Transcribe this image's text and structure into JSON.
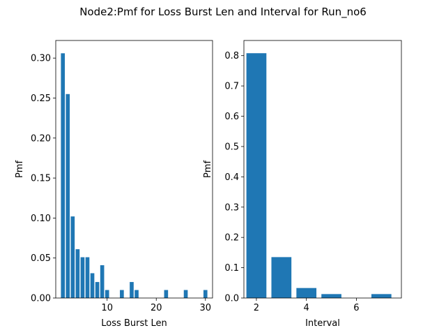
{
  "suptitle": "Node2:Pmf for Loss Burst Len and Interval for Run_no6",
  "chart_data": [
    {
      "type": "bar",
      "xlabel": "Loss Burst Len",
      "ylabel": "Pmf",
      "color": "#1f77b4",
      "xlim": [
        -0.45,
        31.45
      ],
      "ylim": [
        0,
        0.322
      ],
      "xticks": [
        10,
        20,
        30
      ],
      "yticks": [
        0.0,
        0.05,
        0.1,
        0.15,
        0.2,
        0.25,
        0.3
      ],
      "ytick_labels": [
        "0.00",
        "0.05",
        "0.10",
        "0.15",
        "0.20",
        "0.25",
        "0.30"
      ],
      "bar_width": 0.8,
      "x": [
        1,
        2,
        3,
        4,
        5,
        6,
        7,
        8,
        9,
        10,
        13,
        15,
        16,
        22,
        26,
        30
      ],
      "values": [
        0.306,
        0.255,
        0.102,
        0.061,
        0.051,
        0.051,
        0.031,
        0.02,
        0.041,
        0.01,
        0.01,
        0.02,
        0.01,
        0.01,
        0.01,
        0.01
      ]
    },
    {
      "type": "bar",
      "xlabel": "Interval",
      "ylabel": "Pmf",
      "color": "#1f77b4",
      "xlim": [
        1.5,
        7.8
      ],
      "ylim": [
        0,
        0.85
      ],
      "xticks": [
        2,
        4,
        6
      ],
      "yticks": [
        0.0,
        0.1,
        0.2,
        0.3,
        0.4,
        0.5,
        0.6,
        0.7,
        0.8
      ],
      "ytick_labels": [
        "0.0",
        "0.1",
        "0.2",
        "0.3",
        "0.4",
        "0.5",
        "0.6",
        "0.7",
        "0.8"
      ],
      "bar_width": 0.8,
      "x": [
        2,
        3,
        4,
        5,
        7
      ],
      "values": [
        0.808,
        0.135,
        0.033,
        0.013,
        0.013
      ]
    }
  ]
}
